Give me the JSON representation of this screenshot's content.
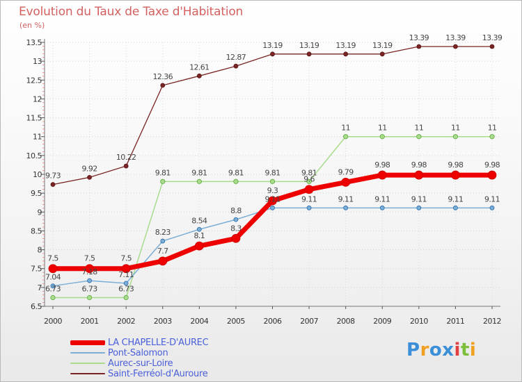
{
  "chart_data": {
    "type": "line",
    "title": "Evolution du Taux de Taxe d'Habitation",
    "ylabel": "(en %)",
    "xlabel": "",
    "ylim": [
      6.5,
      13.5
    ],
    "yticks": [
      "6.5",
      "7",
      "7.5",
      "8",
      "8.5",
      "9",
      "9.5",
      "10",
      "10.5",
      "11",
      "11.5",
      "12",
      "12.5",
      "13",
      "13.5"
    ],
    "categories": [
      "2000",
      "2001",
      "2002",
      "2003",
      "2004",
      "2005",
      "2006",
      "2007",
      "2008",
      "2009",
      "2010",
      "2011",
      "2012"
    ],
    "series": [
      {
        "name": "Saint-Ferréol-d'Auroure",
        "color": "#7a2424",
        "values": [
          9.73,
          9.92,
          10.22,
          12.36,
          12.61,
          12.87,
          13.19,
          13.19,
          13.19,
          13.19,
          13.39,
          13.39,
          13.39
        ],
        "labels": [
          "9.73",
          "9.92",
          "10.22",
          "12.36",
          "12.61",
          "12.87",
          "13.19",
          "13.19",
          "13.19",
          "13.19",
          "13.39",
          "13.39",
          "13.39"
        ]
      },
      {
        "name": "Aurec-sur-Loire",
        "color": "#a8dc8c",
        "values": [
          6.73,
          6.73,
          6.73,
          9.81,
          9.81,
          9.81,
          9.81,
          9.81,
          11,
          11,
          11,
          11,
          11
        ],
        "labels": [
          "6.73",
          "6.73",
          "6.73",
          "9.81",
          "9.81",
          "9.81",
          "9.81",
          "9.81",
          "11",
          "11",
          "11",
          "11",
          "11"
        ]
      },
      {
        "name": "Pont-Salomon",
        "color": "#7aaed6",
        "values": [
          7.04,
          7.18,
          7.11,
          8.23,
          8.54,
          8.8,
          9.11,
          9.11,
          9.11,
          9.11,
          9.11,
          9.11,
          9.11
        ],
        "labels": [
          "7.04",
          "7.18",
          "7.11",
          "8.23",
          "8.54",
          "8.8",
          "9.11",
          "9.11",
          "9.11",
          "9.11",
          "9.11",
          "9.11",
          "9.11"
        ]
      },
      {
        "name": "LA CHAPELLE-D'AUREC",
        "color": "#ee0000",
        "values": [
          7.5,
          7.5,
          7.5,
          7.7,
          8.1,
          8.3,
          9.3,
          9.6,
          9.79,
          9.98,
          9.98,
          9.98,
          9.98
        ],
        "labels": [
          "7.5",
          "7.5",
          "7.5",
          "7.7",
          "8.1",
          "8.3",
          "9.3",
          "9.6",
          "9.79",
          "9.98",
          "9.98",
          "9.98",
          "9.98"
        ]
      }
    ],
    "legend": [
      "LA CHAPELLE-D'AUREC",
      "Pont-Salomon",
      "Aurec-sur-Loire",
      "Saint-Ferréol-d'Auroure"
    ],
    "legend_position": "bottom-left"
  },
  "logo": {
    "letters": [
      "P",
      "r",
      "o",
      "x",
      "i",
      "t",
      "i"
    ]
  }
}
